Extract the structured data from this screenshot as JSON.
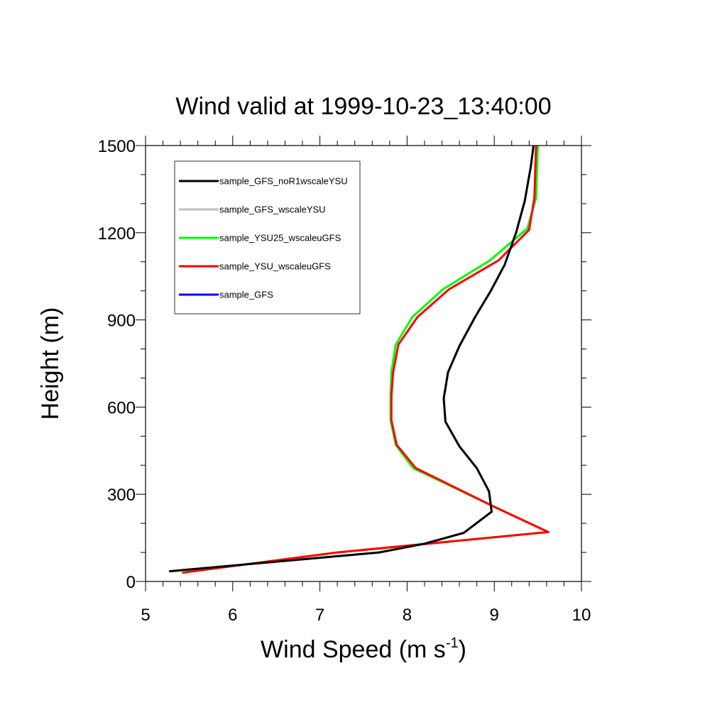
{
  "chart_data": {
    "type": "line",
    "title": "Wind valid at 1999-10-23_13:40:00",
    "xlabel": "Wind Speed (m s",
    "xlabel_superscript": "-1",
    "xlabel_suffix": ")",
    "ylabel": "Height (m)",
    "xlim": [
      5,
      10
    ],
    "ylim": [
      0,
      1500
    ],
    "xticks": [
      "5",
      "6",
      "7",
      "8",
      "9",
      "10"
    ],
    "yticks": [
      "0",
      "300",
      "600",
      "900",
      "1200",
      "1500"
    ],
    "grid": false,
    "legend_position": "top-left",
    "series": [
      {
        "name": "sample_GFS_noR1wscaleYSU",
        "color": "#000000",
        "x": [
          5.27,
          7.68,
          8.2,
          8.65,
          8.97,
          8.94,
          8.8,
          8.6,
          8.44,
          8.42,
          8.47,
          8.6,
          8.78,
          8.96,
          9.12,
          9.25,
          9.35,
          9.42,
          9.45
        ],
        "y": [
          35,
          100,
          130,
          167,
          240,
          310,
          390,
          465,
          550,
          630,
          720,
          810,
          910,
          1000,
          1090,
          1200,
          1310,
          1430,
          1500
        ]
      },
      {
        "name": "sample_GFS_wscaleYSU",
        "color": "#bfbfbf",
        "x": [
          5.27,
          7.68,
          8.2,
          8.65,
          8.97,
          8.94,
          8.8,
          8.6,
          8.44,
          8.42,
          8.47,
          8.6,
          8.78,
          8.96,
          9.12,
          9.25,
          9.35,
          9.42,
          9.45
        ],
        "y": [
          35,
          100,
          130,
          167,
          240,
          310,
          390,
          465,
          550,
          630,
          720,
          810,
          910,
          1000,
          1090,
          1200,
          1310,
          1430,
          1500
        ]
      },
      {
        "name": "sample_YSU25_wscaleuGFS",
        "color": "#00ff00",
        "x": [
          5.42,
          7.2,
          9.62,
          8.98,
          8.07,
          7.87,
          7.81,
          7.81,
          7.82,
          7.87,
          8.06,
          8.41,
          8.95,
          9.38,
          9.48,
          9.5
        ],
        "y": [
          30,
          100,
          170,
          260,
          390,
          470,
          555,
          640,
          720,
          815,
          910,
          1005,
          1105,
          1215,
          1320,
          1500
        ]
      },
      {
        "name": "sample_YSU_wscaleuGFS",
        "color": "#ff0000",
        "x": [
          5.42,
          7.2,
          9.62,
          8.98,
          8.1,
          7.88,
          7.82,
          7.82,
          7.84,
          7.9,
          8.12,
          8.48,
          9.05,
          9.4,
          9.46,
          9.48
        ],
        "y": [
          30,
          100,
          170,
          260,
          390,
          470,
          555,
          640,
          720,
          815,
          910,
          1005,
          1105,
          1210,
          1320,
          1500
        ]
      },
      {
        "name": "sample_GFS",
        "color": "#0000ff",
        "x": [],
        "y": []
      }
    ]
  }
}
